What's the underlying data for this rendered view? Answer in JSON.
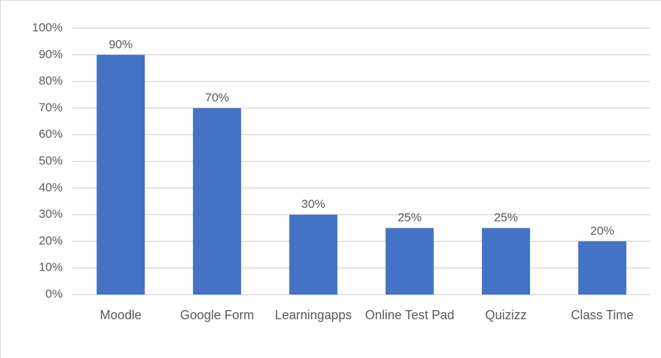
{
  "chart_data": {
    "type": "bar",
    "categories": [
      "Moodle",
      "Google Form",
      "Learningapps",
      "Online Test Pad",
      "Quizizz",
      "Class Time"
    ],
    "values": [
      90,
      70,
      30,
      25,
      25,
      20
    ],
    "value_labels": [
      "90%",
      "70%",
      "30%",
      "25%",
      "25%",
      "20%"
    ],
    "color": "#4472c4",
    "ylim": [
      0,
      100
    ],
    "yticks": [
      {
        "value": 0,
        "label": "0%"
      },
      {
        "value": 10,
        "label": "10%"
      },
      {
        "value": 20,
        "label": "20%"
      },
      {
        "value": 30,
        "label": "30%"
      },
      {
        "value": 40,
        "label": "40%"
      },
      {
        "value": 50,
        "label": "50%"
      },
      {
        "value": 60,
        "label": "60%"
      },
      {
        "value": 70,
        "label": "70%"
      },
      {
        "value": 80,
        "label": "80%"
      },
      {
        "value": 90,
        "label": "90%"
      },
      {
        "value": 100,
        "label": "100%"
      }
    ],
    "grid": true
  }
}
